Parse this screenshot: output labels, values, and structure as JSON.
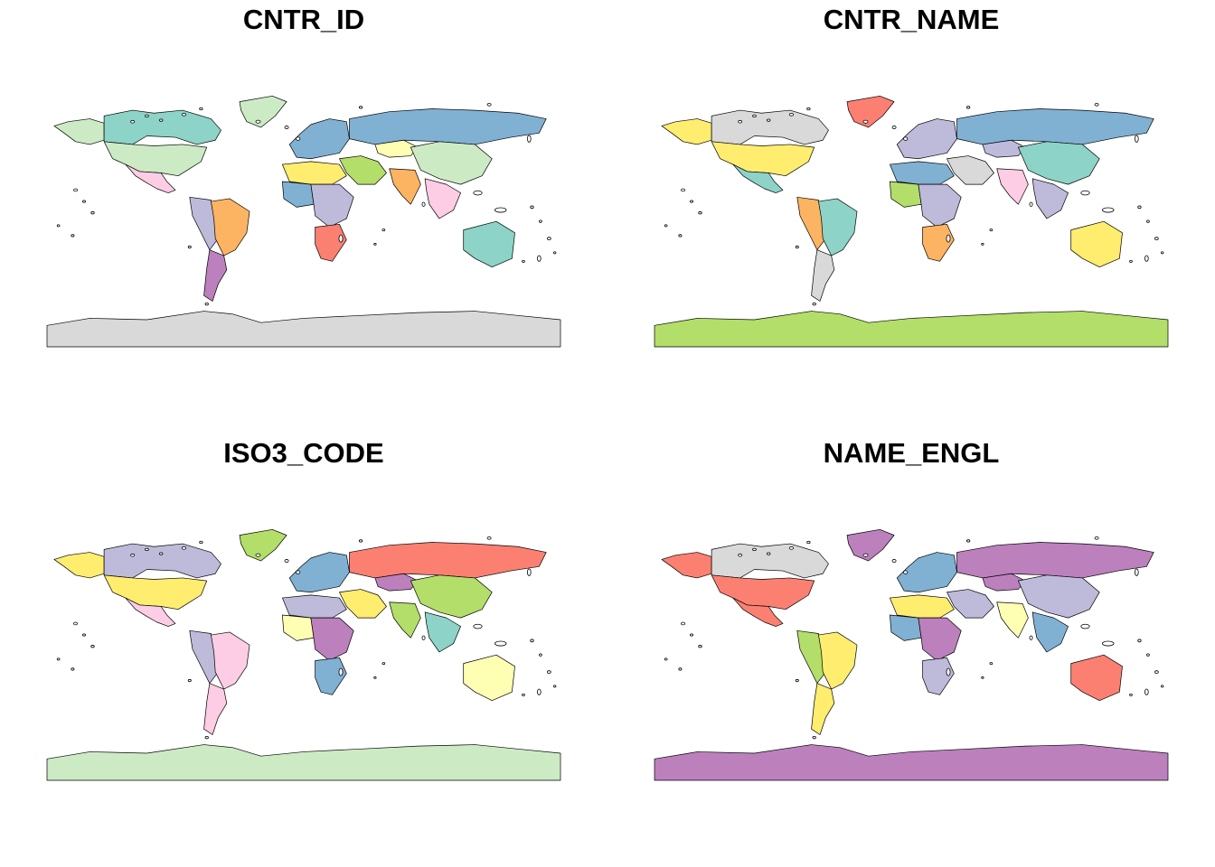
{
  "figure": {
    "panels": [
      {
        "title": "CNTR_ID"
      },
      {
        "title": "CNTR_NAME"
      },
      {
        "title": "ISO3_CODE"
      },
      {
        "title": "NAME_ENGL"
      }
    ]
  },
  "colors": {
    "border": "#000000",
    "background": "#ffffff",
    "palette": [
      "#8DD3C7",
      "#FFFFB3",
      "#BEBADA",
      "#FB8072",
      "#80B1D3",
      "#FDB462",
      "#B3DE69",
      "#FCCDE5",
      "#D9D9D9",
      "#BC80BD",
      "#CCEBC5",
      "#FFED6F"
    ]
  },
  "panel_fills": [
    {
      "north_america_west": "#CCEBC5",
      "canada": "#8DD3C7",
      "greenland": "#CCEBC5",
      "usa": "#CCEBC5",
      "mexico": "#FCCDE5",
      "brazil": "#FDB462",
      "south_america_west": "#BEBADA",
      "argentina": "#BC80BD",
      "europe": "#80B1D3",
      "russia": "#80B1D3",
      "kazakhstan": "#FFFFB3",
      "china": "#CCEBC5",
      "india": "#FDB462",
      "middle_east": "#B3DE69",
      "africa_north": "#FFED6F",
      "africa_west": "#80B1D3",
      "africa_central": "#BEBADA",
      "africa_south": "#FB8072",
      "se_asia": "#FCCDE5",
      "australia": "#8DD3C7",
      "antarctica": "#D9D9D9"
    },
    {
      "north_america_west": "#FFED6F",
      "canada": "#D9D9D9",
      "greenland": "#FB8072",
      "usa": "#FFED6F",
      "mexico": "#8DD3C7",
      "brazil": "#8DD3C7",
      "south_america_west": "#FDB462",
      "argentina": "#D9D9D9",
      "europe": "#BEBADA",
      "russia": "#80B1D3",
      "kazakhstan": "#BEBADA",
      "china": "#8DD3C7",
      "india": "#FCCDE5",
      "middle_east": "#D9D9D9",
      "africa_north": "#80B1D3",
      "africa_west": "#B3DE69",
      "africa_central": "#BEBADA",
      "africa_south": "#FDB462",
      "se_asia": "#BEBADA",
      "australia": "#FFED6F",
      "antarctica": "#B3DE69"
    },
    {
      "north_america_west": "#FFED6F",
      "canada": "#BEBADA",
      "greenland": "#B3DE69",
      "usa": "#FFED6F",
      "mexico": "#FCCDE5",
      "brazil": "#FCCDE5",
      "south_america_west": "#BEBADA",
      "argentina": "#FCCDE5",
      "europe": "#80B1D3",
      "russia": "#FB8072",
      "kazakhstan": "#BC80BD",
      "china": "#B3DE69",
      "india": "#B3DE69",
      "middle_east": "#FFED6F",
      "africa_north": "#BEBADA",
      "africa_west": "#FFFFB3",
      "africa_central": "#BC80BD",
      "africa_south": "#80B1D3",
      "se_asia": "#8DD3C7",
      "australia": "#FFFFB3",
      "antarctica": "#CCEBC5"
    },
    {
      "north_america_west": "#FB8072",
      "canada": "#D9D9D9",
      "greenland": "#BC80BD",
      "usa": "#FB8072",
      "mexico": "#FB8072",
      "brazil": "#FFED6F",
      "south_america_west": "#B3DE69",
      "argentina": "#FFED6F",
      "europe": "#80B1D3",
      "russia": "#BC80BD",
      "kazakhstan": "#BC80BD",
      "china": "#BEBADA",
      "india": "#FFFFB3",
      "middle_east": "#BEBADA",
      "africa_north": "#FFED6F",
      "africa_west": "#80B1D3",
      "africa_central": "#BC80BD",
      "africa_south": "#BEBADA",
      "se_asia": "#80B1D3",
      "australia": "#FB8072",
      "antarctica": "#BC80BD"
    }
  ]
}
